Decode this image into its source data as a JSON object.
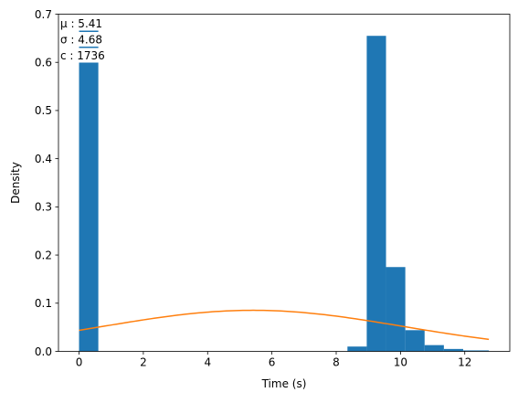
{
  "chart_data": {
    "type": "bar",
    "xlabel": "Time (s)",
    "ylabel": "Density",
    "xlim": [
      -0.64,
      13.4
    ],
    "ylim": [
      0,
      0.7
    ],
    "x_ticks": [
      0,
      2,
      4,
      6,
      8,
      10,
      12
    ],
    "y_ticks": [
      0.0,
      0.1,
      0.2,
      0.3,
      0.4,
      0.5,
      0.6,
      0.7
    ],
    "x_tick_labels": [
      "0",
      "2",
      "4",
      "6",
      "8",
      "10",
      "12"
    ],
    "y_tick_labels": [
      "0.0",
      "0.1",
      "0.2",
      "0.3",
      "0.4",
      "0.5",
      "0.6",
      "0.7"
    ],
    "bar_color": "#1f77b4",
    "curve_color": "#ff7f0e",
    "bins": [
      {
        "x0": 0.0,
        "x1": 0.6,
        "value": 0.668
      },
      {
        "x0": 8.35,
        "x1": 8.95,
        "value": 0.01
      },
      {
        "x0": 8.95,
        "x1": 9.55,
        "value": 0.655
      },
      {
        "x0": 9.55,
        "x1": 10.15,
        "value": 0.175
      },
      {
        "x0": 10.15,
        "x1": 10.75,
        "value": 0.044
      },
      {
        "x0": 10.75,
        "x1": 11.35,
        "value": 0.013
      },
      {
        "x0": 11.35,
        "x1": 11.95,
        "value": 0.005
      },
      {
        "x0": 11.95,
        "x1": 12.75,
        "value": 0.002
      }
    ],
    "normal_fit": {
      "mu": 5.41,
      "sigma": 4.68,
      "x_range": [
        0,
        12.75
      ]
    },
    "annotations": [
      "μ : 5.41",
      "σ : 4.68",
      "c : 1736"
    ]
  }
}
